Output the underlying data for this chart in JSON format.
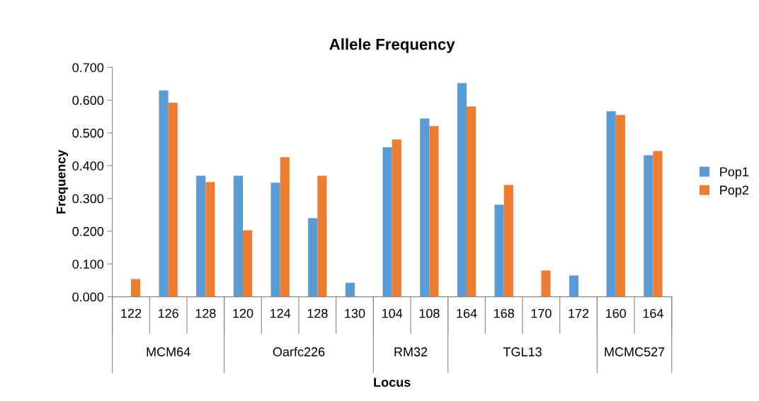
{
  "chart_data": {
    "type": "bar",
    "title": "Allele Frequency",
    "xlabel": "Locus",
    "ylabel": "Frequency",
    "categories": [
      "122",
      "126",
      "128",
      "120",
      "124",
      "128",
      "130",
      "104",
      "108",
      "164",
      "168",
      "170",
      "172",
      "160",
      "164"
    ],
    "series": [
      {
        "name": "Pop1",
        "color": "#5b9bd5",
        "values": [
          0,
          0.63,
          0.369,
          0.369,
          0.348,
          0.24,
          0.043,
          0.456,
          0.544,
          0.652,
          0.281,
          0,
          0.065,
          0.566,
          0.432
        ]
      },
      {
        "name": "Pop2",
        "color": "#ed7d31",
        "values": [
          0.054,
          0.592,
          0.35,
          0.203,
          0.426,
          0.369,
          0,
          0.48,
          0.521,
          0.581,
          0.341,
          0.08,
          0,
          0.555,
          0.445
        ]
      }
    ],
    "annotations": [
      "MCM64",
      "Oarfc226",
      "RM32",
      "TGL13",
      "MCMC527"
    ],
    "ylim": [
      0,
      0.7
    ],
    "yticks": [
      {
        "value": 0,
        "label": "0.000"
      },
      {
        "value": 0.1,
        "label": "0.100"
      },
      {
        "value": 0.2,
        "label": "0.200"
      },
      {
        "value": 0.3,
        "label": "0.300"
      },
      {
        "value": 0.4,
        "label": "0.400"
      },
      {
        "value": 0.5,
        "label": "0.500"
      },
      {
        "value": 0.6,
        "label": "0.600"
      },
      {
        "value": 0.7,
        "label": "0.700"
      }
    ],
    "legend": "right",
    "grid": false
  }
}
